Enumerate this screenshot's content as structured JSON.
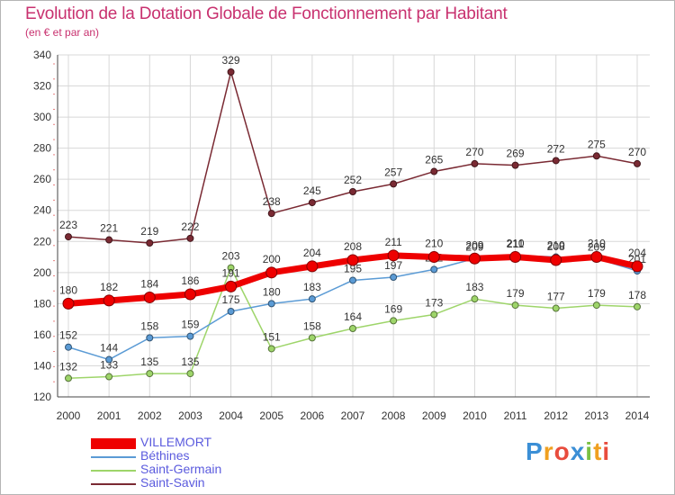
{
  "header": {
    "title": "Evolution de la Dotation Globale de Fonctionnement par Habitant",
    "subtitle": "(en € et par an)"
  },
  "logo": {
    "letters": [
      "P",
      "r",
      "o",
      "x",
      "i",
      "t",
      "i"
    ],
    "colors": [
      "#3b8fd6",
      "#f0a020",
      "#e84c3d",
      "#3b8fd6",
      "#7ac143",
      "#f0a020",
      "#e84c3d"
    ]
  },
  "chart_data": {
    "type": "line",
    "title": "Evolution de la Dotation Globale de Fonctionnement par Habitant",
    "subtitle": "(en € et par an)",
    "xlabel": "",
    "ylabel": "",
    "x": [
      "2000",
      "2001",
      "2002",
      "2003",
      "2004",
      "2005",
      "2006",
      "2007",
      "2008",
      "2009",
      "2010",
      "2011",
      "2012",
      "2013",
      "2014"
    ],
    "ylim": [
      120,
      340
    ],
    "yticks": [
      120,
      140,
      160,
      180,
      200,
      220,
      240,
      260,
      280,
      300,
      320,
      340
    ],
    "grid": true,
    "legend_position": "bottom-left",
    "series": [
      {
        "name": "Saint-Savin",
        "color": "#7a2a33",
        "values": [
          223,
          221,
          219,
          222,
          329,
          238,
          245,
          252,
          257,
          265,
          270,
          269,
          272,
          275,
          270
        ]
      },
      {
        "name": "Saint-Germain",
        "color": "#9ed56a",
        "values": [
          132,
          133,
          135,
          135,
          203,
          151,
          158,
          164,
          169,
          173,
          183,
          179,
          177,
          179,
          178
        ]
      },
      {
        "name": "Béthines",
        "color": "#5b9bd5",
        "values": [
          152,
          144,
          158,
          159,
          175,
          180,
          183,
          195,
          197,
          202,
          209,
          211,
          210,
          209,
          201
        ]
      },
      {
        "name": "VILLEMORT",
        "color": "#ee0000",
        "values": [
          180,
          182,
          184,
          186,
          191,
          200,
          204,
          208,
          211,
          210,
          209,
          210,
          208,
          210,
          204
        ]
      }
    ],
    "legend_order": [
      "VILLEMORT",
      "Béthines",
      "Saint-Germain",
      "Saint-Savin"
    ]
  }
}
